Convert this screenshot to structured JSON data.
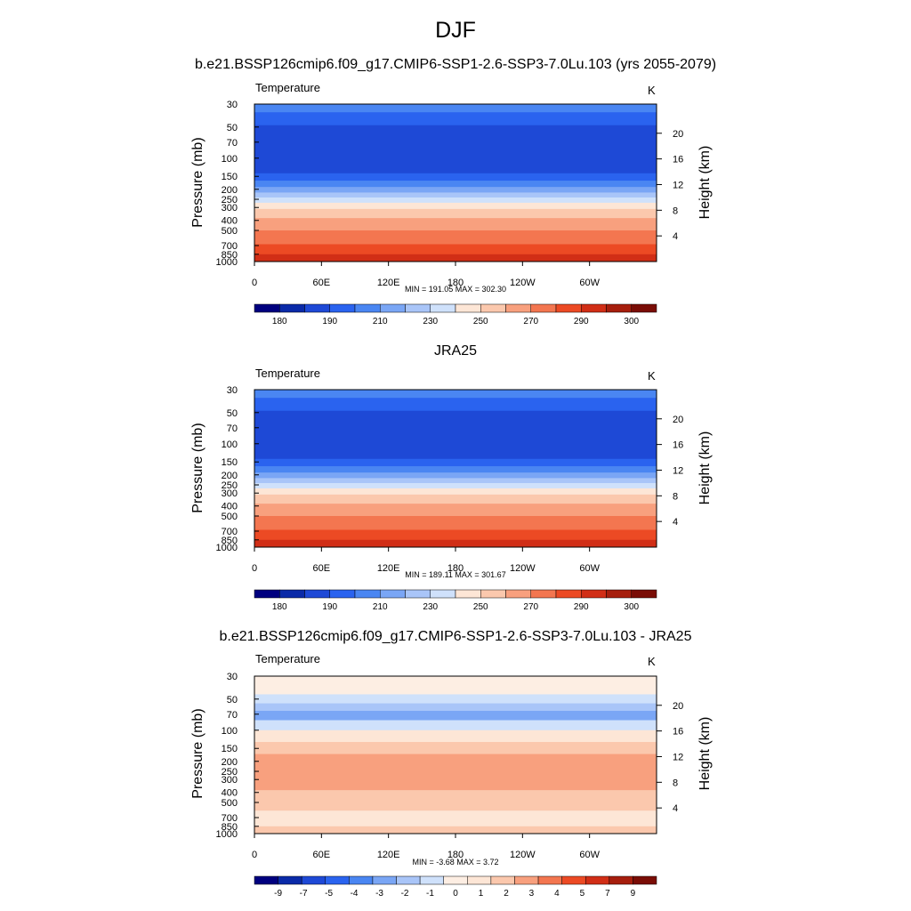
{
  "figure": {
    "title": "DJF"
  },
  "chart_data": [
    {
      "type": "heatmap",
      "title": "b.e21.BSSP126cmip6.f09_g17.CMIP6-SSP1-2.6-SSP3-7.0Lu.103 (yrs 2055-2079)",
      "variable": "Temperature",
      "units": "K",
      "ylabel": "Pressure (mb)",
      "y2label": "Height (km)",
      "x_ticks": [
        "0",
        "60E",
        "120E",
        "180",
        "120W",
        "60W"
      ],
      "y_ticks": [
        "30",
        "50",
        "70",
        "100",
        "150",
        "200",
        "250",
        "300",
        "400",
        "500",
        "700",
        "850",
        "1000"
      ],
      "y2_ticks": [
        "4",
        "8",
        "12",
        "16",
        "20"
      ],
      "stats": "MIN = 191.05  MAX = 302.30",
      "min": 191.05,
      "max": 302.3,
      "colorbar_labels": [
        "180",
        "190",
        "210",
        "230",
        "250",
        "270",
        "290",
        "300"
      ],
      "colorbar_colors": [
        "#00007f",
        "#0a2aa8",
        "#1e49d6",
        "#2a63ef",
        "#4a86f2",
        "#7aa6f5",
        "#a9c5f8",
        "#cfe1fb",
        "#fde6d6",
        "#fbc8ad",
        "#f8a07e",
        "#f37650",
        "#ec4a24",
        "#d12e16",
        "#a61e0d",
        "#7a0d06"
      ],
      "profile_description": "zonally uniform; coldest 50-150 mb, warm near surface"
    },
    {
      "type": "heatmap",
      "title": "JRA25",
      "variable": "Temperature",
      "units": "K",
      "ylabel": "Pressure (mb)",
      "y2label": "Height (km)",
      "x_ticks": [
        "0",
        "60E",
        "120E",
        "180",
        "120W",
        "60W"
      ],
      "y_ticks": [
        "30",
        "50",
        "70",
        "100",
        "150",
        "200",
        "250",
        "300",
        "400",
        "500",
        "700",
        "850",
        "1000"
      ],
      "y2_ticks": [
        "4",
        "8",
        "12",
        "16",
        "20"
      ],
      "stats": "MIN = 189.11  MAX = 301.67",
      "min": 189.11,
      "max": 301.67,
      "colorbar_labels": [
        "180",
        "190",
        "210",
        "230",
        "250",
        "270",
        "290",
        "300"
      ],
      "colorbar_colors": [
        "#00007f",
        "#0a2aa8",
        "#1e49d6",
        "#2a63ef",
        "#4a86f2",
        "#7aa6f5",
        "#a9c5f8",
        "#cfe1fb",
        "#fde6d6",
        "#fbc8ad",
        "#f8a07e",
        "#f37650",
        "#ec4a24",
        "#d12e16",
        "#a61e0d",
        "#7a0d06"
      ]
    },
    {
      "type": "heatmap",
      "title": "b.e21.BSSP126cmip6.f09_g17.CMIP6-SSP1-2.6-SSP3-7.0Lu.103 - JRA25",
      "variable": "Temperature",
      "units": "K",
      "ylabel": "Pressure (mb)",
      "y2label": "Height (km)",
      "x_ticks": [
        "0",
        "60E",
        "120E",
        "180",
        "120W",
        "60W"
      ],
      "y_ticks": [
        "30",
        "50",
        "70",
        "100",
        "150",
        "200",
        "250",
        "300",
        "400",
        "500",
        "700",
        "850",
        "1000"
      ],
      "y2_ticks": [
        "4",
        "8",
        "12",
        "16",
        "20"
      ],
      "stats": "MIN =  -3.68  MAX =   3.72",
      "min": -3.68,
      "max": 3.72,
      "colorbar_labels": [
        "-9",
        "-7",
        "-5",
        "-4",
        "-3",
        "-2",
        "-1",
        "0",
        "1",
        "2",
        "3",
        "4",
        "5",
        "7",
        "9"
      ],
      "colorbar_colors": [
        "#00007f",
        "#0a2aa8",
        "#1e49d6",
        "#2a63ef",
        "#4a86f2",
        "#7aa6f5",
        "#a9c5f8",
        "#cfe1fb",
        "#fdeee3",
        "#fde6d6",
        "#fbc8ad",
        "#f8a07e",
        "#f37650",
        "#ec4a24",
        "#d12e16",
        "#a61e0d",
        "#7a0d06"
      ]
    }
  ]
}
